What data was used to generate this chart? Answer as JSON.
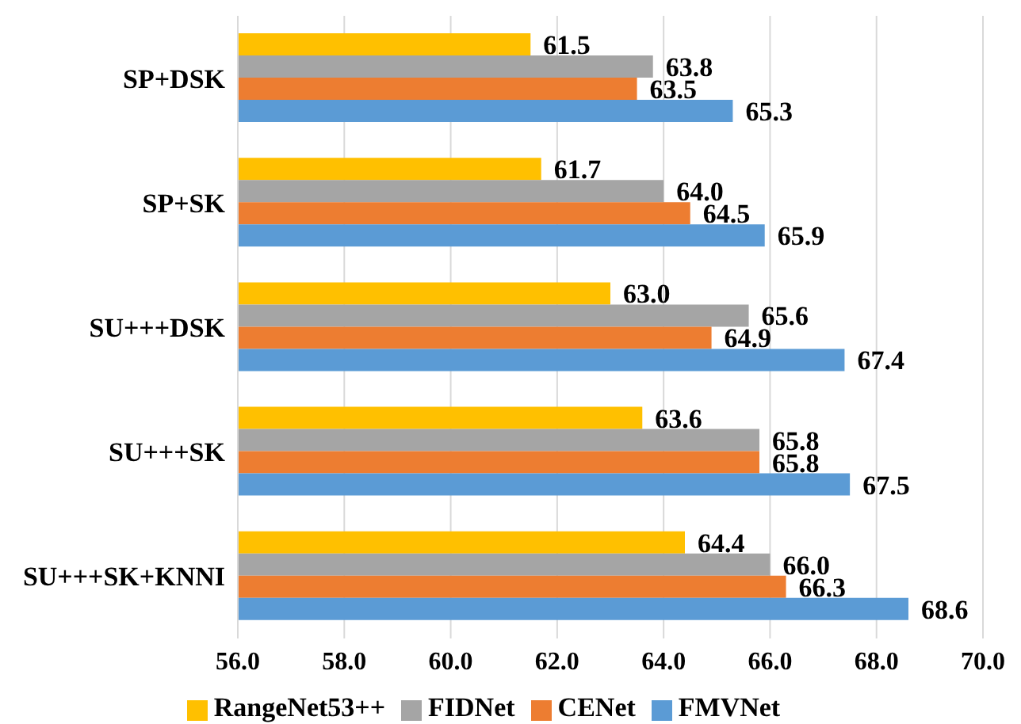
{
  "chart_data": {
    "type": "bar",
    "orientation": "horizontal",
    "categories": [
      "SP+DSK",
      "SP+SK",
      "SU+++DSK",
      "SU+++SK",
      "SU+++SK+KNNI"
    ],
    "series": [
      {
        "name": "RangeNet53++",
        "color": "#ffc000",
        "values": [
          61.5,
          61.7,
          63.0,
          63.6,
          64.4
        ],
        "value_labels": [
          "61.5",
          "61.7",
          "63.0",
          "63.6",
          "64.4"
        ]
      },
      {
        "name": "FIDNet",
        "color": "#a5a5a5",
        "values": [
          63.8,
          64.0,
          65.6,
          65.8,
          66.0
        ],
        "value_labels": [
          "63.8",
          "64.0",
          "65.6",
          "65.8",
          "66.0"
        ]
      },
      {
        "name": "CENet",
        "color": "#ed7d31",
        "values": [
          63.5,
          64.5,
          64.9,
          65.8,
          66.3
        ],
        "value_labels": [
          "63.5",
          "64.5",
          "64.9",
          "65.8",
          "66.3"
        ]
      },
      {
        "name": "FMVNet",
        "color": "#5b9bd5",
        "values": [
          65.3,
          65.9,
          67.4,
          67.5,
          68.6
        ],
        "value_labels": [
          "65.3",
          "65.9",
          "67.4",
          "67.5",
          "68.6"
        ]
      }
    ],
    "xlim": [
      56,
      70
    ],
    "xticks": [
      {
        "value": 56,
        "label": "56.0"
      },
      {
        "value": 58,
        "label": "58.0"
      },
      {
        "value": 60,
        "label": "60.0"
      },
      {
        "value": 62,
        "label": "62.0"
      },
      {
        "value": 64,
        "label": "64.0"
      },
      {
        "value": 66,
        "label": "66.0"
      },
      {
        "value": 68,
        "label": "68.0"
      },
      {
        "value": 70,
        "label": "70.0"
      }
    ],
    "grid": "x",
    "legend": "bottom"
  }
}
